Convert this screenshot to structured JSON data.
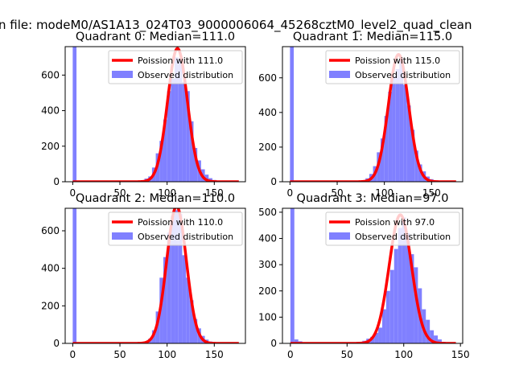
{
  "figure_title": "n file: modeM0/AS1A13_024T03_9000006064_45268cztM0_level2_quad_clean",
  "colors": {
    "bar": "#8080ff",
    "curve": "#ff0000",
    "axis": "#000000"
  },
  "chart_data": [
    {
      "type": "bar",
      "title": "Quadrant 0: Median=111.0",
      "xlim": [
        -8,
        183
      ],
      "ylim": [
        0,
        760
      ],
      "xticks": [
        0,
        50,
        100,
        150
      ],
      "yticks": [
        0,
        200,
        400,
        600
      ],
      "grid": false,
      "legend_position": "top-right",
      "legend": [
        "Poission with 111.0",
        "Observed distribution"
      ],
      "bin_width": 4,
      "bins": [
        [
          0,
          800
        ],
        [
          52,
          2
        ],
        [
          64,
          3
        ],
        [
          72,
          8
        ],
        [
          76,
          18
        ],
        [
          80,
          30
        ],
        [
          84,
          80
        ],
        [
          88,
          160
        ],
        [
          92,
          230
        ],
        [
          96,
          350
        ],
        [
          100,
          510
        ],
        [
          104,
          580
        ],
        [
          108,
          700
        ],
        [
          112,
          690
        ],
        [
          116,
          560
        ],
        [
          120,
          510
        ],
        [
          124,
          340
        ],
        [
          128,
          190
        ],
        [
          132,
          120
        ],
        [
          136,
          70
        ],
        [
          140,
          40
        ],
        [
          144,
          20
        ],
        [
          148,
          10
        ],
        [
          152,
          5
        ],
        [
          156,
          2
        ]
      ],
      "curve": {
        "label": "Poission with 111.0",
        "mean": 111.0,
        "peak": 750,
        "sigma": 10.5,
        "x_range": [
          0,
          176
        ]
      }
    },
    {
      "type": "bar",
      "title": "Quadrant 1: Median=115.0",
      "xlim": [
        -8,
        183
      ],
      "ylim": [
        0,
        780
      ],
      "xticks": [
        0,
        50,
        100,
        150
      ],
      "yticks": [
        0,
        200,
        400,
        600
      ],
      "grid": false,
      "legend_position": "top-right",
      "legend": [
        "Poission with 115.0",
        "Observed distribution"
      ],
      "bin_width": 4,
      "bins": [
        [
          0,
          800
        ],
        [
          52,
          3
        ],
        [
          72,
          6
        ],
        [
          80,
          20
        ],
        [
          84,
          45
        ],
        [
          88,
          90
        ],
        [
          92,
          170
        ],
        [
          96,
          250
        ],
        [
          100,
          380
        ],
        [
          104,
          520
        ],
        [
          108,
          610
        ],
        [
          112,
          650
        ],
        [
          116,
          710
        ],
        [
          120,
          560
        ],
        [
          124,
          440
        ],
        [
          128,
          300
        ],
        [
          132,
          180
        ],
        [
          136,
          100
        ],
        [
          140,
          60
        ],
        [
          144,
          30
        ],
        [
          148,
          15
        ],
        [
          152,
          8
        ],
        [
          156,
          4
        ]
      ],
      "curve": {
        "label": "Poission with 115.0",
        "mean": 115.0,
        "peak": 735,
        "sigma": 10.7,
        "x_range": [
          0,
          176
        ]
      }
    },
    {
      "type": "bar",
      "title": "Quadrant 2: Median=110.0",
      "xlim": [
        -8,
        183
      ],
      "ylim": [
        0,
        720
      ],
      "xticks": [
        0,
        50,
        100,
        150
      ],
      "yticks": [
        0,
        200,
        400,
        600
      ],
      "grid": false,
      "legend_position": "top-right",
      "legend": [
        "Poission with 110.0",
        "Observed distribution"
      ],
      "bin_width": 4,
      "bins": [
        [
          0,
          800
        ],
        [
          72,
          4
        ],
        [
          76,
          10
        ],
        [
          80,
          25
        ],
        [
          84,
          70
        ],
        [
          88,
          170
        ],
        [
          92,
          350
        ],
        [
          96,
          460
        ],
        [
          100,
          590
        ],
        [
          104,
          680
        ],
        [
          108,
          710
        ],
        [
          112,
          690
        ],
        [
          116,
          470
        ],
        [
          120,
          350
        ],
        [
          124,
          230
        ],
        [
          128,
          130
        ],
        [
          132,
          80
        ],
        [
          136,
          40
        ],
        [
          140,
          20
        ],
        [
          144,
          10
        ]
      ],
      "curve": {
        "label": "Poission with 110.0",
        "mean": 110.0,
        "peak": 730,
        "sigma": 10.4,
        "x_range": [
          0,
          176
        ]
      }
    },
    {
      "type": "bar",
      "title": "Quadrant 3: Median=97.0",
      "xlim": [
        -7,
        152
      ],
      "ylim": [
        0,
        515
      ],
      "xticks": [
        0,
        50,
        100,
        150
      ],
      "yticks": [
        0,
        100,
        200,
        300,
        400,
        500
      ],
      "grid": false,
      "legend_position": "top-right",
      "legend": [
        "Poission with 97.0",
        "Observed distribution"
      ],
      "bin_width": 3.5,
      "bins": [
        [
          0,
          600
        ],
        [
          3.5,
          15
        ],
        [
          7,
          8
        ],
        [
          60,
          6
        ],
        [
          63.5,
          10
        ],
        [
          67,
          18
        ],
        [
          70.5,
          25
        ],
        [
          74,
          40
        ],
        [
          77.5,
          60
        ],
        [
          81,
          130
        ],
        [
          84.5,
          200
        ],
        [
          88,
          280
        ],
        [
          91.5,
          360
        ],
        [
          95,
          440
        ],
        [
          98.5,
          480
        ],
        [
          102,
          420
        ],
        [
          105.5,
          340
        ],
        [
          109,
          290
        ],
        [
          112.5,
          210
        ],
        [
          116,
          130
        ],
        [
          119.5,
          90
        ],
        [
          123,
          50
        ],
        [
          126.5,
          30
        ],
        [
          130,
          15
        ],
        [
          133.5,
          6
        ]
      ],
      "curve": {
        "label": "Poission with 97.0",
        "mean": 97.0,
        "peak": 490,
        "sigma": 9.85,
        "x_range": [
          0,
          146
        ]
      }
    }
  ]
}
